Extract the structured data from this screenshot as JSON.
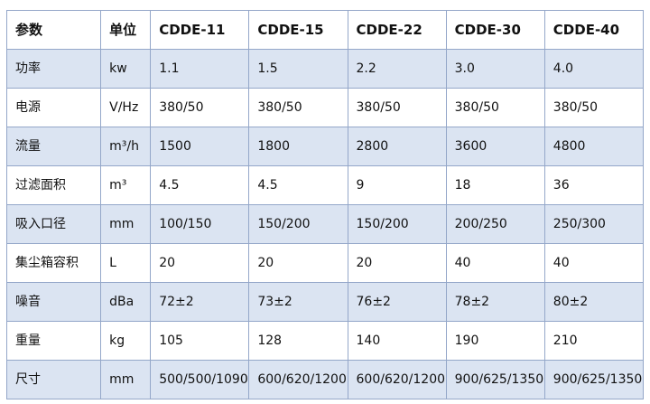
{
  "table": {
    "headers": [
      "参数",
      "单位",
      "CDDE-11",
      "CDDE-15",
      "CDDE-22",
      "CDDE-30",
      "CDDE-40"
    ],
    "rows": [
      [
        "功率",
        "kw",
        "1.1",
        "1.5",
        "2.2",
        "3.0",
        "4.0"
      ],
      [
        "电源",
        "V/Hz",
        "380/50",
        "380/50",
        "380/50",
        "380/50",
        "380/50"
      ],
      [
        "流量",
        "m³/h",
        "1500",
        "1800",
        "2800",
        "3600",
        "4800"
      ],
      [
        "过滤面积",
        "m³",
        "4.5",
        "4.5",
        "9",
        "18",
        "36"
      ],
      [
        "吸入口径",
        "mm",
        "100/150",
        "150/200",
        "150/200",
        "200/250",
        "250/300"
      ],
      [
        "集尘箱容积",
        "L",
        "20",
        "20",
        "20",
        "40",
        "40"
      ],
      [
        "噪音",
        "dBa",
        "72±2",
        "73±2",
        "76±2",
        "78±2",
        "80±2"
      ],
      [
        "重量",
        "kg",
        "105",
        "128",
        "140",
        "190",
        "210"
      ],
      [
        "尺寸",
        "mm",
        "500/500/1090",
        "600/620/1200",
        "600/620/1200",
        "900/625/1350",
        "900/625/1350"
      ]
    ]
  },
  "colors": {
    "band": "#dbe4f2",
    "border": "#94a7c9"
  }
}
